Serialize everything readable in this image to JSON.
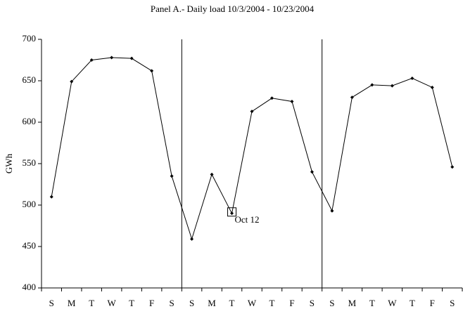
{
  "chart_data": {
    "type": "line",
    "title": "Panel A.- Daily load 10/3/2004 - 10/23/2004",
    "y_label": "GWh",
    "annotation": "Oct 12",
    "categories": [
      "S",
      "M",
      "T",
      "W",
      "T",
      "F",
      "S",
      "S",
      "M",
      "T",
      "W",
      "T",
      "F",
      "S",
      "S",
      "M",
      "T",
      "W",
      "T",
      "F",
      "S"
    ],
    "values": [
      510,
      649,
      675,
      678,
      677,
      662,
      535,
      459,
      537,
      490,
      613,
      629,
      625,
      540,
      493,
      630,
      645,
      644,
      653,
      642,
      546
    ],
    "color": "#000000",
    "ylim": [
      400,
      700
    ],
    "yticks": [
      400,
      450,
      500,
      550,
      600,
      650,
      700
    ],
    "grid": false
  }
}
